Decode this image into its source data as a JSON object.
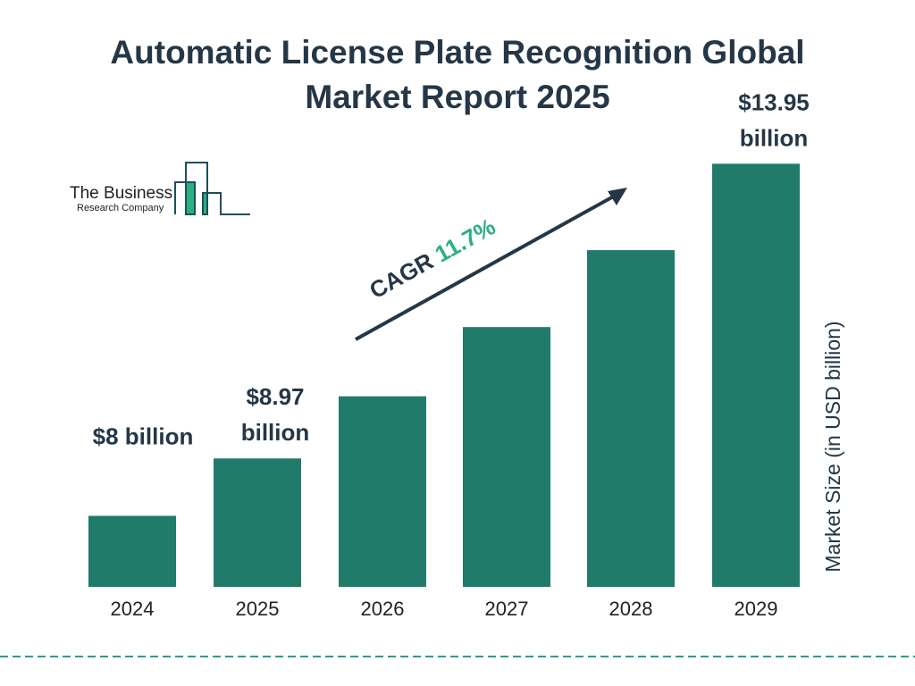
{
  "chart_data": {
    "type": "bar",
    "title_line1": "Automatic License Plate Recognition Global",
    "title_line2": "Market Report 2025",
    "categories": [
      "2024",
      "2025",
      "2026",
      "2027",
      "2028",
      "2029"
    ],
    "values": [
      8,
      8.97,
      10.02,
      11.19,
      12.49,
      13.95
    ],
    "data_labels": [
      [
        "$8 billion"
      ],
      [
        "$8.97",
        "billion"
      ],
      [],
      [],
      [],
      [
        "$13.95",
        "billion"
      ]
    ],
    "ylabel": "Market Size (in USD billion)",
    "ylim": [
      6.8,
      14
    ],
    "grid": false,
    "bar_color": "#217b6b",
    "annotation": {
      "prefix": "CAGR ",
      "value": "11.7%",
      "value_color": "#2bb07f"
    }
  },
  "logo": {
    "line1": "The Business",
    "line2": "Research Company",
    "accent": "#2bb07f",
    "outline": "#1f4e5a"
  },
  "footer_line_color": "#2a9d8f"
}
